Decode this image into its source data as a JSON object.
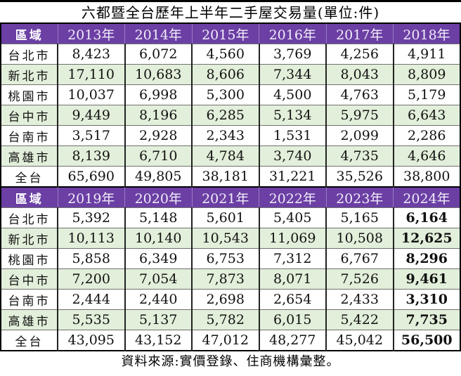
{
  "title": "六都暨全台歷年上半年二手屋交易量(單位:件)",
  "footer": "資料來源:實價登錄、住商機構彙整。",
  "colors": {
    "header_bg": "#6b3fa4",
    "header_text": "#f2ecf9",
    "alt_row_bg": "#e2efda",
    "border": "#000000",
    "row_divider": "#707070"
  },
  "tables": [
    {
      "header": [
        "區域",
        "2013年",
        "2014年",
        "2015年",
        "2016年",
        "2017年",
        "2018年"
      ],
      "bold_last_col": false,
      "rows": [
        [
          "台北市",
          "8,423",
          "6,072",
          "4,560",
          "3,769",
          "4,256",
          "4,911"
        ],
        [
          "新北市",
          "17,110",
          "10,683",
          "8,606",
          "7,344",
          "8,043",
          "8,809"
        ],
        [
          "桃園市",
          "10,037",
          "6,998",
          "5,300",
          "4,500",
          "4,763",
          "5,179"
        ],
        [
          "台中市",
          "9,449",
          "8,196",
          "6,285",
          "5,134",
          "5,975",
          "6,643"
        ],
        [
          "台南市",
          "3,517",
          "2,928",
          "2,343",
          "1,531",
          "2,099",
          "2,286"
        ],
        [
          "高雄市",
          "8,139",
          "6,710",
          "4,784",
          "3,740",
          "4,735",
          "4,646"
        ],
        [
          "全台",
          "65,690",
          "49,805",
          "38,181",
          "31,221",
          "35,526",
          "38,800"
        ]
      ]
    },
    {
      "header": [
        "區域",
        "2019年",
        "2020年",
        "2021年",
        "2022年",
        "2023年",
        "2024年"
      ],
      "bold_last_col": true,
      "rows": [
        [
          "台北市",
          "5,392",
          "5,148",
          "5,601",
          "5,405",
          "5,165",
          "6,164"
        ],
        [
          "新北市",
          "10,113",
          "10,140",
          "10,543",
          "11,069",
          "10,508",
          "12,625"
        ],
        [
          "桃園市",
          "5,858",
          "6,349",
          "6,753",
          "7,312",
          "6,767",
          "8,296"
        ],
        [
          "台中市",
          "7,200",
          "7,054",
          "7,873",
          "8,071",
          "7,526",
          "9,461"
        ],
        [
          "台南市",
          "2,444",
          "2,440",
          "2,698",
          "2,654",
          "2,433",
          "3,310"
        ],
        [
          "高雄市",
          "5,535",
          "5,137",
          "5,782",
          "6,015",
          "5,422",
          "7,735"
        ],
        [
          "全台",
          "43,095",
          "43,152",
          "47,012",
          "48,277",
          "45,042",
          "56,500"
        ]
      ]
    }
  ],
  "chart_data": {
    "type": "table",
    "title": "六都暨全台歷年上半年二手屋交易量(單位:件)",
    "unit": "件",
    "columns": [
      "2013年",
      "2014年",
      "2015年",
      "2016年",
      "2017年",
      "2018年",
      "2019年",
      "2020年",
      "2021年",
      "2022年",
      "2023年",
      "2024年"
    ],
    "rows": [
      {
        "region": "台北市",
        "values": [
          8423,
          6072,
          4560,
          3769,
          4256,
          4911,
          5392,
          5148,
          5601,
          5405,
          5165,
          6164
        ]
      },
      {
        "region": "新北市",
        "values": [
          17110,
          10683,
          8606,
          7344,
          8043,
          8809,
          10113,
          10140,
          10543,
          11069,
          10508,
          12625
        ]
      },
      {
        "region": "桃園市",
        "values": [
          10037,
          6998,
          5300,
          4500,
          4763,
          5179,
          5858,
          6349,
          6753,
          7312,
          6767,
          8296
        ]
      },
      {
        "region": "台中市",
        "values": [
          9449,
          8196,
          6285,
          5134,
          5975,
          6643,
          7200,
          7054,
          7873,
          8071,
          7526,
          9461
        ]
      },
      {
        "region": "台南市",
        "values": [
          3517,
          2928,
          2343,
          1531,
          2099,
          2286,
          2444,
          2440,
          2698,
          2654,
          2433,
          3310
        ]
      },
      {
        "region": "高雄市",
        "values": [
          8139,
          6710,
          4784,
          3740,
          4735,
          4646,
          5535,
          5137,
          5782,
          6015,
          5422,
          7735
        ]
      },
      {
        "region": "全台",
        "values": [
          65690,
          49805,
          38181,
          31221,
          35526,
          38800,
          43095,
          43152,
          47012,
          48277,
          45042,
          56500
        ]
      }
    ],
    "source_note": "資料來源:實價登錄、住商機構彙整。",
    "legend_position": "none",
    "grid": true
  }
}
